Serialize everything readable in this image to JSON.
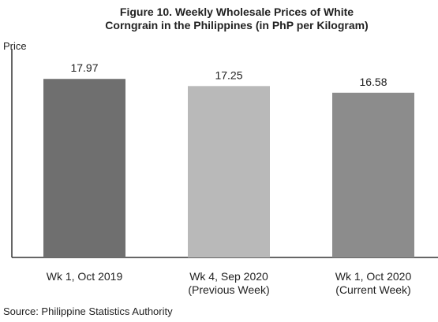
{
  "chart_data": {
    "type": "bar",
    "title": "Figure 10. Weekly Wholesale Prices of White\nCorngrain in the Philippines (in PhP per Kilogram)",
    "y_label": "Price",
    "categories": [
      "Wk 1, Oct 2019",
      "Wk 4, Sep 2020\n(Previous Week)",
      "Wk 1, Oct 2020\n(Current Week)"
    ],
    "values": [
      17.97,
      17.25,
      16.58
    ],
    "colors": [
      "#6f6f6f",
      "#b9b9b9",
      "#8c8c8c"
    ],
    "ylim": [
      0,
      21
    ],
    "source": "Source: Philippine Statistics Authority"
  }
}
